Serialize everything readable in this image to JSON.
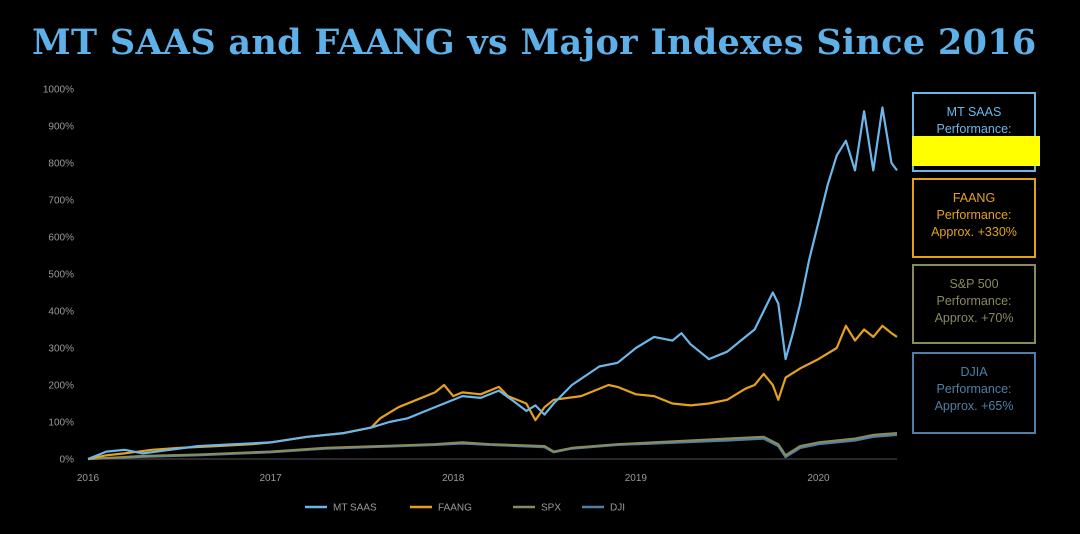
{
  "chart_data": {
    "type": "line",
    "title": "MT SAAS and FAANG vs Major Indexes Since 2016",
    "xlabel": "",
    "ylabel": "",
    "x_ticks": [
      "2016",
      "2017",
      "2018",
      "2019",
      "2020"
    ],
    "y_ticks": [
      "0%",
      "100%",
      "200%",
      "300%",
      "400%",
      "500%",
      "600%",
      "700%",
      "800%",
      "900%",
      "1000%"
    ],
    "xlim": [
      2016.0,
      2020.43
    ],
    "ylim": [
      0,
      1000
    ],
    "grid": false,
    "legend_position": "bottom",
    "series": [
      {
        "name": "MT SAAS",
        "color": "#6cb6ea",
        "points": [
          [
            2016.0,
            0
          ],
          [
            2016.1,
            20
          ],
          [
            2016.2,
            25
          ],
          [
            2016.3,
            15
          ],
          [
            2016.45,
            25
          ],
          [
            2016.6,
            35
          ],
          [
            2016.8,
            40
          ],
          [
            2017.0,
            45
          ],
          [
            2017.2,
            60
          ],
          [
            2017.4,
            70
          ],
          [
            2017.55,
            85
          ],
          [
            2017.65,
            100
          ],
          [
            2017.75,
            110
          ],
          [
            2017.85,
            130
          ],
          [
            2017.95,
            150
          ],
          [
            2018.05,
            170
          ],
          [
            2018.15,
            165
          ],
          [
            2018.25,
            185
          ],
          [
            2018.32,
            160
          ],
          [
            2018.4,
            130
          ],
          [
            2018.45,
            145
          ],
          [
            2018.5,
            120
          ],
          [
            2018.55,
            150
          ],
          [
            2018.65,
            200
          ],
          [
            2018.8,
            250
          ],
          [
            2018.9,
            260
          ],
          [
            2019.0,
            300
          ],
          [
            2019.1,
            330
          ],
          [
            2019.2,
            320
          ],
          [
            2019.25,
            340
          ],
          [
            2019.3,
            310
          ],
          [
            2019.35,
            290
          ],
          [
            2019.4,
            270
          ],
          [
            2019.5,
            290
          ],
          [
            2019.6,
            330
          ],
          [
            2019.65,
            350
          ],
          [
            2019.7,
            400
          ],
          [
            2019.75,
            450
          ],
          [
            2019.78,
            420
          ],
          [
            2019.82,
            270
          ],
          [
            2019.86,
            340
          ],
          [
            2019.9,
            420
          ],
          [
            2019.95,
            540
          ],
          [
            2020.0,
            640
          ],
          [
            2020.05,
            740
          ],
          [
            2020.1,
            820
          ],
          [
            2020.15,
            860
          ],
          [
            2020.2,
            780
          ],
          [
            2020.25,
            940
          ],
          [
            2020.3,
            780
          ],
          [
            2020.35,
            950
          ],
          [
            2020.4,
            800
          ],
          [
            2020.43,
            780
          ]
        ]
      },
      {
        "name": "FAANG",
        "color": "#e5a11e",
        "points": [
          [
            2016.0,
            0
          ],
          [
            2016.1,
            10
          ],
          [
            2016.2,
            15
          ],
          [
            2016.35,
            25
          ],
          [
            2016.5,
            30
          ],
          [
            2016.7,
            35
          ],
          [
            2016.9,
            40
          ],
          [
            2017.0,
            45
          ],
          [
            2017.2,
            60
          ],
          [
            2017.4,
            70
          ],
          [
            2017.55,
            85
          ],
          [
            2017.6,
            110
          ],
          [
            2017.7,
            140
          ],
          [
            2017.8,
            160
          ],
          [
            2017.9,
            180
          ],
          [
            2017.95,
            200
          ],
          [
            2018.0,
            170
          ],
          [
            2018.05,
            180
          ],
          [
            2018.15,
            175
          ],
          [
            2018.25,
            195
          ],
          [
            2018.3,
            170
          ],
          [
            2018.4,
            150
          ],
          [
            2018.45,
            105
          ],
          [
            2018.5,
            140
          ],
          [
            2018.55,
            160
          ],
          [
            2018.7,
            170
          ],
          [
            2018.85,
            200
          ],
          [
            2018.9,
            195
          ],
          [
            2019.0,
            175
          ],
          [
            2019.1,
            170
          ],
          [
            2019.2,
            150
          ],
          [
            2019.3,
            145
          ],
          [
            2019.4,
            150
          ],
          [
            2019.5,
            160
          ],
          [
            2019.6,
            190
          ],
          [
            2019.65,
            200
          ],
          [
            2019.7,
            230
          ],
          [
            2019.75,
            200
          ],
          [
            2019.78,
            160
          ],
          [
            2019.82,
            220
          ],
          [
            2019.9,
            245
          ],
          [
            2020.0,
            270
          ],
          [
            2020.1,
            300
          ],
          [
            2020.15,
            360
          ],
          [
            2020.2,
            320
          ],
          [
            2020.25,
            350
          ],
          [
            2020.3,
            330
          ],
          [
            2020.35,
            360
          ],
          [
            2020.4,
            340
          ],
          [
            2020.43,
            330
          ]
        ]
      },
      {
        "name": "SPX",
        "color": "#8a8a5c",
        "points": [
          [
            2016.0,
            0
          ],
          [
            2016.3,
            8
          ],
          [
            2016.6,
            12
          ],
          [
            2017.0,
            20
          ],
          [
            2017.3,
            30
          ],
          [
            2017.6,
            35
          ],
          [
            2017.9,
            40
          ],
          [
            2018.05,
            45
          ],
          [
            2018.2,
            40
          ],
          [
            2018.5,
            35
          ],
          [
            2018.55,
            20
          ],
          [
            2018.65,
            30
          ],
          [
            2018.9,
            40
          ],
          [
            2019.1,
            45
          ],
          [
            2019.3,
            50
          ],
          [
            2019.5,
            55
          ],
          [
            2019.7,
            60
          ],
          [
            2019.78,
            40
          ],
          [
            2019.82,
            10
          ],
          [
            2019.9,
            35
          ],
          [
            2020.0,
            45
          ],
          [
            2020.2,
            55
          ],
          [
            2020.3,
            65
          ],
          [
            2020.43,
            70
          ]
        ]
      },
      {
        "name": "DJI",
        "color": "#4f7fa6",
        "points": [
          [
            2016.0,
            0
          ],
          [
            2016.3,
            6
          ],
          [
            2016.6,
            10
          ],
          [
            2017.0,
            18
          ],
          [
            2017.3,
            28
          ],
          [
            2017.6,
            33
          ],
          [
            2017.9,
            38
          ],
          [
            2018.05,
            42
          ],
          [
            2018.2,
            38
          ],
          [
            2018.5,
            32
          ],
          [
            2018.55,
            18
          ],
          [
            2018.65,
            28
          ],
          [
            2018.9,
            38
          ],
          [
            2019.1,
            42
          ],
          [
            2019.3,
            46
          ],
          [
            2019.5,
            50
          ],
          [
            2019.7,
            55
          ],
          [
            2019.78,
            35
          ],
          [
            2019.82,
            5
          ],
          [
            2019.9,
            30
          ],
          [
            2020.0,
            40
          ],
          [
            2020.2,
            50
          ],
          [
            2020.3,
            60
          ],
          [
            2020.43,
            65
          ]
        ]
      }
    ]
  },
  "callouts": [
    {
      "id": "mtsaas",
      "lines": [
        "MT SAAS",
        "Performance:",
        ""
      ],
      "color": "#6cb6ea",
      "redacted": true
    },
    {
      "id": "faang",
      "lines": [
        "FAANG",
        "Performance:",
        "Approx. +330%"
      ],
      "color": "#e5a11e"
    },
    {
      "id": "sp500",
      "lines": [
        "S&P 500",
        "Performance:",
        "Approx. +70%"
      ],
      "color": "#8a8a5c"
    },
    {
      "id": "djia",
      "lines": [
        "DJIA",
        "Performance:",
        "Approx. +65%"
      ],
      "color": "#4f7fa6"
    }
  ]
}
